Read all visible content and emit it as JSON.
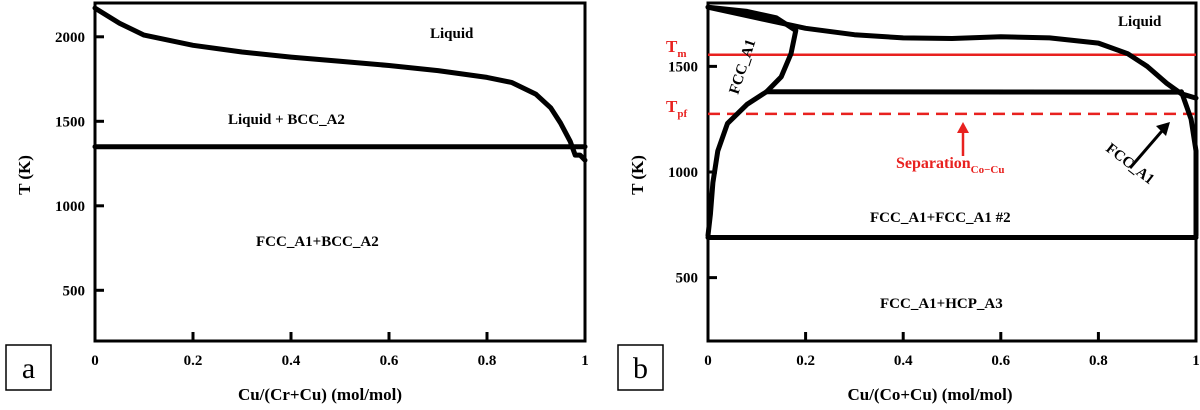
{
  "chart_data": [
    {
      "type": "line",
      "panel_label": "a",
      "xlabel": "Cu/(Cr+Cu) (mol/mol)",
      "ylabel": "T (K)",
      "xlim": [
        0,
        1
      ],
      "ylim": [
        200,
        2200
      ],
      "x_ticks": [
        0,
        0.2,
        0.4,
        0.6,
        0.8,
        1
      ],
      "x_tick_labels": [
        "0",
        "0.2",
        "0.4",
        "0.6",
        "0.8",
        "1"
      ],
      "y_ticks": [
        500,
        1000,
        1500,
        2000
      ],
      "y_tick_labels": [
        "500",
        "1000",
        "1500",
        "2000"
      ],
      "grid": false,
      "series": [
        {
          "values": [
            [
              0,
              2170
            ],
            [
              0.05,
              2080
            ],
            [
              0.1,
              2010
            ],
            [
              0.2,
              1950
            ],
            [
              0.3,
              1910
            ],
            [
              0.4,
              1880
            ],
            [
              0.5,
              1855
            ],
            [
              0.6,
              1830
            ],
            [
              0.7,
              1800
            ],
            [
              0.8,
              1760
            ],
            [
              0.85,
              1730
            ],
            [
              0.9,
              1660
            ],
            [
              0.93,
              1580
            ],
            [
              0.95,
              1490
            ],
            [
              0.97,
              1380
            ],
            [
              0.98,
              1300
            ],
            [
              0.99,
              1300
            ],
            [
              1.0,
              1270
            ]
          ]
        },
        {
          "values": [
            [
              0,
              1350
            ],
            [
              1,
              1350
            ]
          ]
        }
      ],
      "annotations": [
        "Liquid",
        "Liquid + BCC_A2",
        "FCC_A1+BCC_A2"
      ]
    },
    {
      "type": "line",
      "panel_label": "b",
      "xlabel": "Cu/(Co+Cu) (mol/mol)",
      "ylabel": "T (K)",
      "xlim": [
        0,
        1
      ],
      "ylim": [
        200,
        1800
      ],
      "x_ticks": [
        0,
        0.2,
        0.4,
        0.6,
        0.8,
        1
      ],
      "x_tick_labels": [
        "0",
        "0.2",
        "0.4",
        "0.6",
        "0.8",
        "1"
      ],
      "y_ticks": [
        500,
        1000,
        1500
      ],
      "y_tick_labels": [
        "500",
        "1000",
        "1500"
      ],
      "grid": false,
      "series": [
        {
          "values": [
            [
              0,
              1780
            ],
            [
              0.1,
              1730
            ],
            [
              0.2,
              1680
            ],
            [
              0.3,
              1650
            ],
            [
              0.4,
              1635
            ],
            [
              0.5,
              1632
            ],
            [
              0.6,
              1640
            ],
            [
              0.7,
              1635
            ],
            [
              0.8,
              1610
            ],
            [
              0.86,
              1560
            ],
            [
              0.9,
              1500
            ],
            [
              0.94,
              1420
            ],
            [
              0.97,
              1370
            ],
            [
              1.0,
              1350
            ]
          ]
        },
        {
          "values": [
            [
              0,
              1780
            ],
            [
              0.08,
              1760
            ],
            [
              0.14,
              1730
            ],
            [
              0.18,
              1670
            ],
            [
              0.17,
              1560
            ],
            [
              0.15,
              1450
            ],
            [
              0.12,
              1380
            ],
            [
              0.08,
              1320
            ],
            [
              0.04,
              1230
            ],
            [
              0.02,
              1100
            ],
            [
              0.01,
              950
            ],
            [
              0.005,
              800
            ],
            [
              0,
              700
            ]
          ]
        },
        {
          "values": [
            [
              0.12,
              1380
            ],
            [
              0.97,
              1378
            ]
          ]
        },
        {
          "values": [
            [
              0.97,
              1380
            ],
            [
              0.99,
              1250
            ],
            [
              1.0,
              1100
            ],
            [
              1.0,
              700
            ]
          ]
        },
        {
          "values": [
            [
              0,
              690
            ],
            [
              1,
              690
            ]
          ]
        }
      ],
      "reference_lines": [
        {
          "label": "T",
          "label_sub": "m",
          "y": 1555,
          "style": "solid",
          "color": "#e8211f"
        },
        {
          "label": "T",
          "label_sub": "pf",
          "y": 1275,
          "style": "dashed",
          "color": "#e8211f"
        }
      ],
      "annotations": [
        "Liquid",
        "FCC_A1",
        "FCC_A1",
        "FCC_A1+FCC_A1 #2",
        "FCC_A1+HCP_A3"
      ],
      "callout": {
        "text": "Separation",
        "sub": "Co−Cu",
        "color": "#e8211f"
      }
    }
  ],
  "colors": {
    "reference": "#e8211f",
    "ink": "#000000",
    "background": "#ffffff"
  }
}
